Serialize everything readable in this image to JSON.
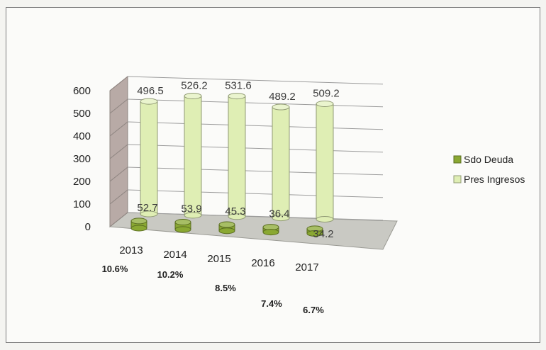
{
  "chart_data": {
    "type": "bar",
    "style": "3d-cylinder",
    "categories": [
      "2013",
      "2014",
      "2015",
      "2016",
      "2017"
    ],
    "series": [
      {
        "name": "Sdo Deuda",
        "values": [
          52.7,
          53.9,
          45.3,
          36.4,
          34.2
        ],
        "color": "#8aa832"
      },
      {
        "name": "Pres Ingresos",
        "values": [
          496.5,
          526.2,
          531.6,
          489.2,
          509.2
        ],
        "color": "#dfeeb4"
      }
    ],
    "y_ticks": [
      "0",
      "100",
      "200",
      "300",
      "400",
      "500",
      "600"
    ],
    "ylim": [
      0,
      600
    ],
    "annotations": [
      "10.6%",
      "10.2%",
      "8.5%",
      "7.4%",
      "6.7%"
    ],
    "legend_position": "right",
    "grid": true,
    "title": "",
    "xlabel": "",
    "ylabel": ""
  }
}
